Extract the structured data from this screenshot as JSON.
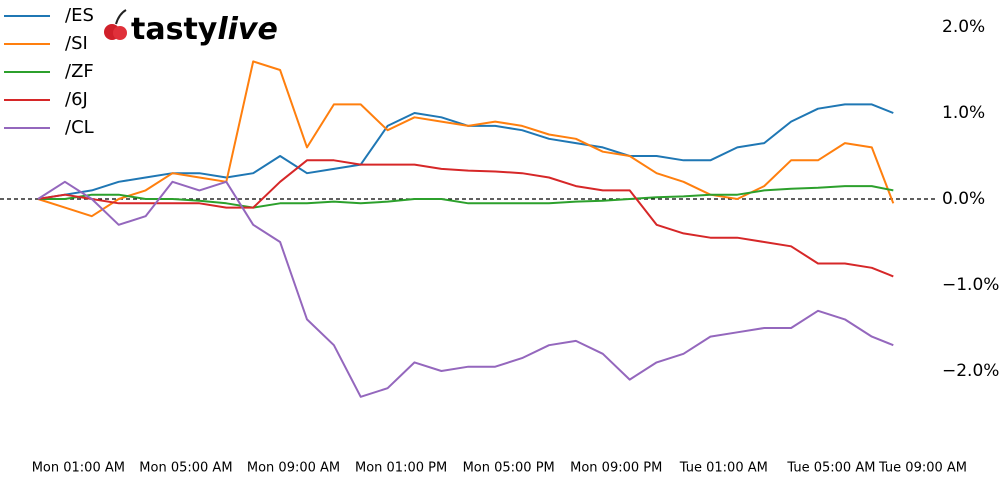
{
  "chart_data": {
    "type": "line",
    "logo": [
      "tasty",
      "live"
    ],
    "x": [
      -0.5,
      0.5,
      1.5,
      2.5,
      3.5,
      4.5,
      5.5,
      6.5,
      7.5,
      8.5,
      9.5,
      10.5,
      11.5,
      12.5,
      13.5,
      14.5,
      15.5,
      16.5,
      17.5,
      18.5,
      19.5,
      20.5,
      21.5,
      22.5,
      23.5,
      24.5,
      25.5,
      26.5,
      27.5,
      28.5,
      29.5,
      30.5,
      31.3
    ],
    "series": [
      {
        "name": "/ES",
        "color": "#1f77b4",
        "values": [
          0,
          0.05,
          0.1,
          0.2,
          0.25,
          0.3,
          0.3,
          0.25,
          0.3,
          0.5,
          0.3,
          0.35,
          0.4,
          0.85,
          1.0,
          0.95,
          0.85,
          0.85,
          0.8,
          0.7,
          0.65,
          0.6,
          0.5,
          0.5,
          0.45,
          0.45,
          0.6,
          0.65,
          0.9,
          1.05,
          1.1,
          1.1,
          1.0
        ]
      },
      {
        "name": "/SI",
        "color": "#ff7f0e",
        "values": [
          0,
          -0.1,
          -0.2,
          0,
          0.1,
          0.3,
          0.25,
          0.2,
          1.6,
          1.5,
          0.6,
          1.1,
          1.1,
          0.8,
          0.95,
          0.9,
          0.85,
          0.9,
          0.85,
          0.75,
          0.7,
          0.55,
          0.5,
          0.3,
          0.2,
          0.05,
          0.0,
          0.15,
          0.45,
          0.45,
          0.65,
          0.6,
          -0.05
        ]
      },
      {
        "name": "/ZF",
        "color": "#2ca02c",
        "values": [
          0,
          0,
          0.05,
          0.05,
          0.0,
          0.0,
          -0.02,
          -0.05,
          -0.1,
          -0.05,
          -0.05,
          -0.03,
          -0.05,
          -0.03,
          0.0,
          0.0,
          -0.05,
          -0.05,
          -0.05,
          -0.05,
          -0.03,
          -0.02,
          0.0,
          0.02,
          0.03,
          0.05,
          0.05,
          0.1,
          0.12,
          0.13,
          0.15,
          0.15,
          0.1
        ]
      },
      {
        "name": "/6J",
        "color": "#d62728",
        "values": [
          0,
          0.05,
          0.0,
          -0.05,
          -0.05,
          -0.05,
          -0.05,
          -0.1,
          -0.1,
          0.2,
          0.45,
          0.45,
          0.4,
          0.4,
          0.4,
          0.35,
          0.33,
          0.32,
          0.3,
          0.25,
          0.15,
          0.1,
          0.1,
          -0.3,
          -0.4,
          -0.45,
          -0.45,
          -0.5,
          -0.55,
          -0.75,
          -0.75,
          -0.8,
          -0.9
        ]
      },
      {
        "name": "/CL",
        "color": "#9467bd",
        "values": [
          0,
          0.2,
          0.0,
          -0.3,
          -0.2,
          0.2,
          0.1,
          0.2,
          -0.3,
          -0.5,
          -1.4,
          -1.7,
          -2.3,
          -2.2,
          -1.9,
          -2.0,
          -1.95,
          -1.95,
          -1.85,
          -1.7,
          -1.65,
          -1.8,
          -2.1,
          -1.9,
          -1.8,
          -1.6,
          -1.55,
          -1.5,
          -1.5,
          -1.3,
          -1.4,
          -1.6,
          -1.7
        ]
      }
    ],
    "xlim": [
      -0.5,
      33
    ],
    "xticks": [
      {
        "value": 1,
        "label": "Mon 01:00 AM"
      },
      {
        "value": 5,
        "label": "Mon 05:00 AM"
      },
      {
        "value": 9,
        "label": "Mon 09:00 AM"
      },
      {
        "value": 13,
        "label": "Mon 01:00 PM"
      },
      {
        "value": 17,
        "label": "Mon 05:00 PM"
      },
      {
        "value": 21,
        "label": "Mon 09:00 PM"
      },
      {
        "value": 25,
        "label": "Tue 01:00 AM"
      },
      {
        "value": 29,
        "label": "Tue 05:00 AM"
      },
      {
        "value": 33,
        "label": "Tue 09:00 AM"
      }
    ],
    "ylim": [
      -2.9,
      2.3
    ],
    "yticks": [
      {
        "value": 2,
        "label": "2.0%"
      },
      {
        "value": 1,
        "label": "1.0%"
      },
      {
        "value": 0,
        "label": "0.0%"
      },
      {
        "value": -1,
        "label": "−1.0%"
      },
      {
        "value": -2,
        "label": "−2.0%"
      }
    ],
    "hline": 0,
    "legend": "upper-left"
  }
}
